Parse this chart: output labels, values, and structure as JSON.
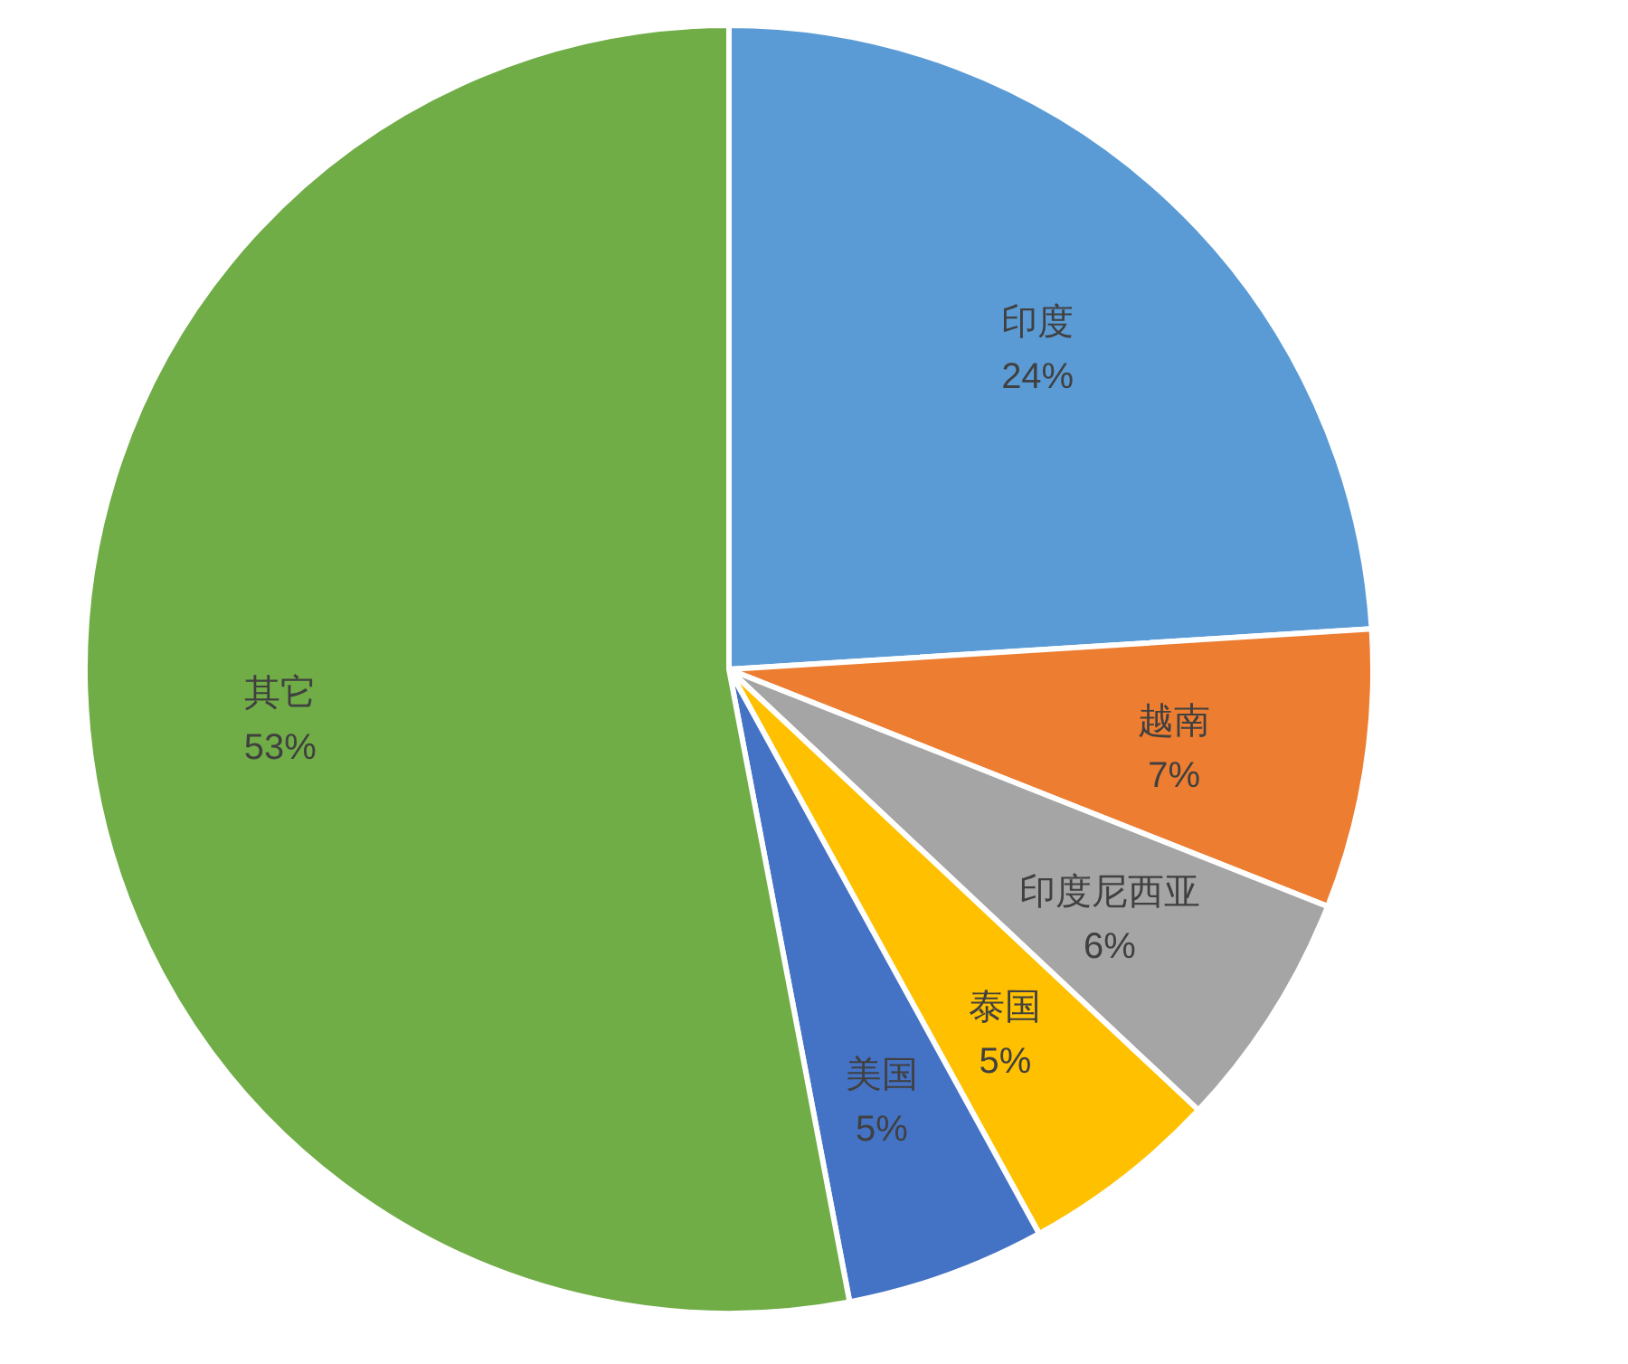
{
  "chart_data": {
    "type": "pie",
    "categories": [
      "印度",
      "越南",
      "印度尼西亚",
      "泰国",
      "美国",
      "其它"
    ],
    "values": [
      24,
      7,
      6,
      5,
      5,
      53
    ],
    "value_labels": [
      "24%",
      "7%",
      "6%",
      "5%",
      "5%",
      "53%"
    ],
    "colors": [
      "#5b9bd5",
      "#ed7d31",
      "#a5a5a5",
      "#ffc000",
      "#4472c4",
      "#70ad47"
    ]
  }
}
